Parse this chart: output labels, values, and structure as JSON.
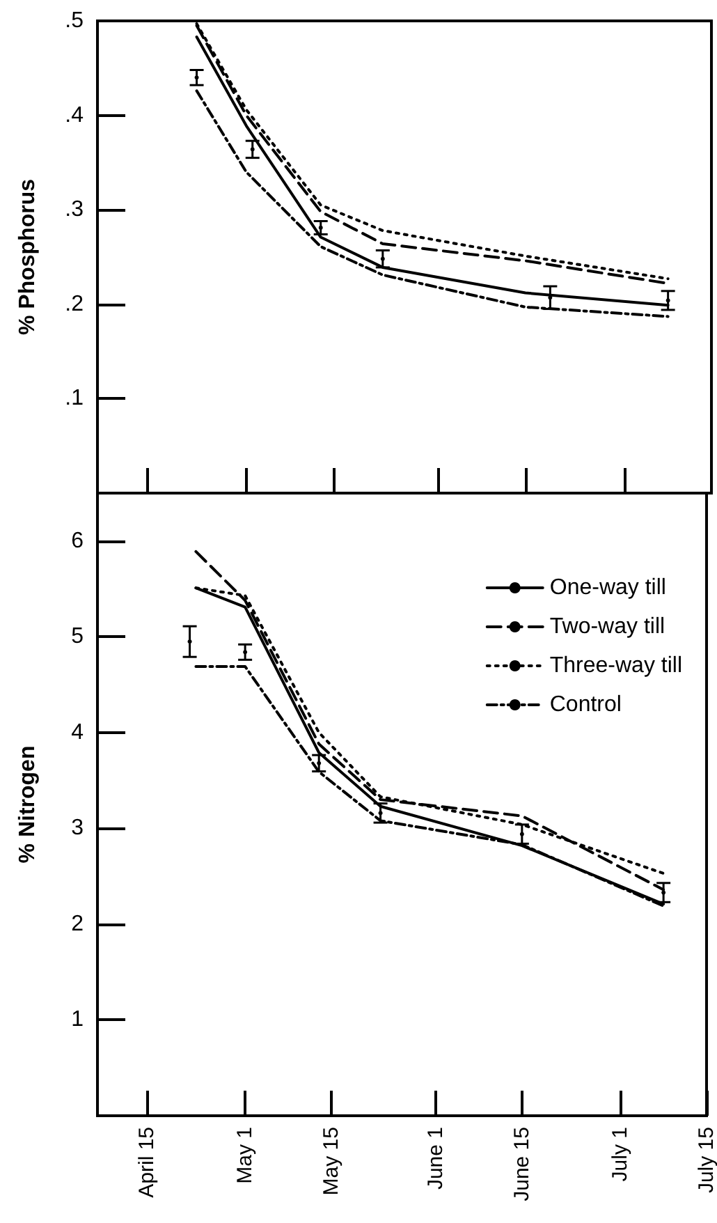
{
  "chart_data": [
    {
      "type": "line",
      "ylabel": "% Phosphorus",
      "x": [
        "--04-23",
        "--05-01",
        "--05-13",
        "--05-23",
        "--06-15",
        "--07-08"
      ],
      "xlim": [
        "--04-07",
        "--07-15"
      ],
      "xticks": [
        {
          "value": "--04-15",
          "label": null
        },
        {
          "value": "--05-01",
          "label": null
        },
        {
          "value": "--05-15",
          "label": null
        },
        {
          "value": "--06-01",
          "label": null
        },
        {
          "value": "--06-15",
          "label": null
        },
        {
          "value": "--07-01",
          "label": null
        }
      ],
      "ylim": [
        0,
        0.5
      ],
      "yticks": [
        {
          "value": 0.1,
          "label": ".1"
        },
        {
          "value": 0.2,
          "label": ".2"
        },
        {
          "value": 0.3,
          "label": ".3"
        },
        {
          "value": 0.4,
          "label": ".4"
        },
        {
          "value": 0.5,
          "label": ".5"
        }
      ],
      "tick_labels": "y",
      "marker": "none",
      "grid": false,
      "legend": false,
      "series": [
        {
          "color": "#000000",
          "line_style": "solid",
          "values": [
            0.483,
            0.389,
            0.271,
            0.239,
            0.212,
            0.199
          ]
        },
        {
          "color": "#000000",
          "line_style": "dashed",
          "values": [
            0.495,
            0.4,
            0.298,
            0.264,
            0.246,
            0.222
          ]
        },
        {
          "color": "#000000",
          "line_style": "dotted",
          "values": [
            0.497,
            0.406,
            0.305,
            0.278,
            0.251,
            0.227
          ]
        },
        {
          "color": "#000000",
          "line_style": "dashdot",
          "values": [
            0.426,
            0.34,
            0.261,
            0.231,
            0.197,
            0.187
          ]
        },
        {
          "type": "scatter",
          "color": "#000000",
          "x": [
            "--04-23",
            "--05-02",
            "--05-13",
            "--05-23",
            "--06-19",
            "--07-08"
          ],
          "values": [
            0.44,
            0.364,
            0.281,
            0.248,
            0.207,
            0.204
          ],
          "errors": [
            0.008,
            0.009,
            0.007,
            0.009,
            0.012,
            0.01
          ]
        }
      ]
    },
    {
      "type": "line",
      "ylabel": "% Nitrogen",
      "x": [
        "--04-23",
        "--05-01",
        "--05-13",
        "--05-23",
        "--06-15",
        "--07-08"
      ],
      "xlim": [
        "--04-07",
        "--07-15"
      ],
      "xticks": [
        {
          "value": "--04-15",
          "label": "April 15"
        },
        {
          "value": "--05-01",
          "label": "May 1"
        },
        {
          "value": "--05-15",
          "label": "May 15"
        },
        {
          "value": "--06-01",
          "label": "June 1"
        },
        {
          "value": "--06-15",
          "label": "June 15"
        },
        {
          "value": "--07-01",
          "label": "July 1"
        },
        {
          "value": "--07-15",
          "label": "July 15"
        }
      ],
      "ylim": [
        0,
        6.5
      ],
      "yticks": [
        1,
        2,
        3,
        4,
        5,
        6
      ],
      "marker": "none",
      "grid": false,
      "legend": "top right",
      "series": [
        {
          "name": "One-way till",
          "color": "#000000",
          "line_style": "solid",
          "values": [
            5.51,
            5.31,
            3.79,
            3.23,
            2.82,
            2.21
          ]
        },
        {
          "name": "Two-way till",
          "color": "#000000",
          "line_style": "dashed",
          "values": [
            5.89,
            5.38,
            3.88,
            3.3,
            3.13,
            2.36
          ]
        },
        {
          "name": "Three-way till",
          "color": "#000000",
          "line_style": "dotted",
          "values": [
            5.51,
            5.43,
            4.0,
            3.33,
            3.04,
            2.53
          ]
        },
        {
          "name": "Control",
          "color": "#000000",
          "line_style": "dashdot",
          "values": [
            4.69,
            4.69,
            3.59,
            3.08,
            2.83,
            2.19
          ]
        },
        {
          "type": "scatter",
          "color": "#000000",
          "x": [
            "--04-22",
            "--05-01",
            "--05-13",
            "--05-23",
            "--06-15",
            "--07-08"
          ],
          "values": [
            4.95,
            4.84,
            3.68,
            3.16,
            2.94,
            2.33
          ],
          "errors": [
            0.16,
            0.08,
            0.085,
            0.1,
            0.1,
            0.1
          ]
        }
      ]
    }
  ]
}
